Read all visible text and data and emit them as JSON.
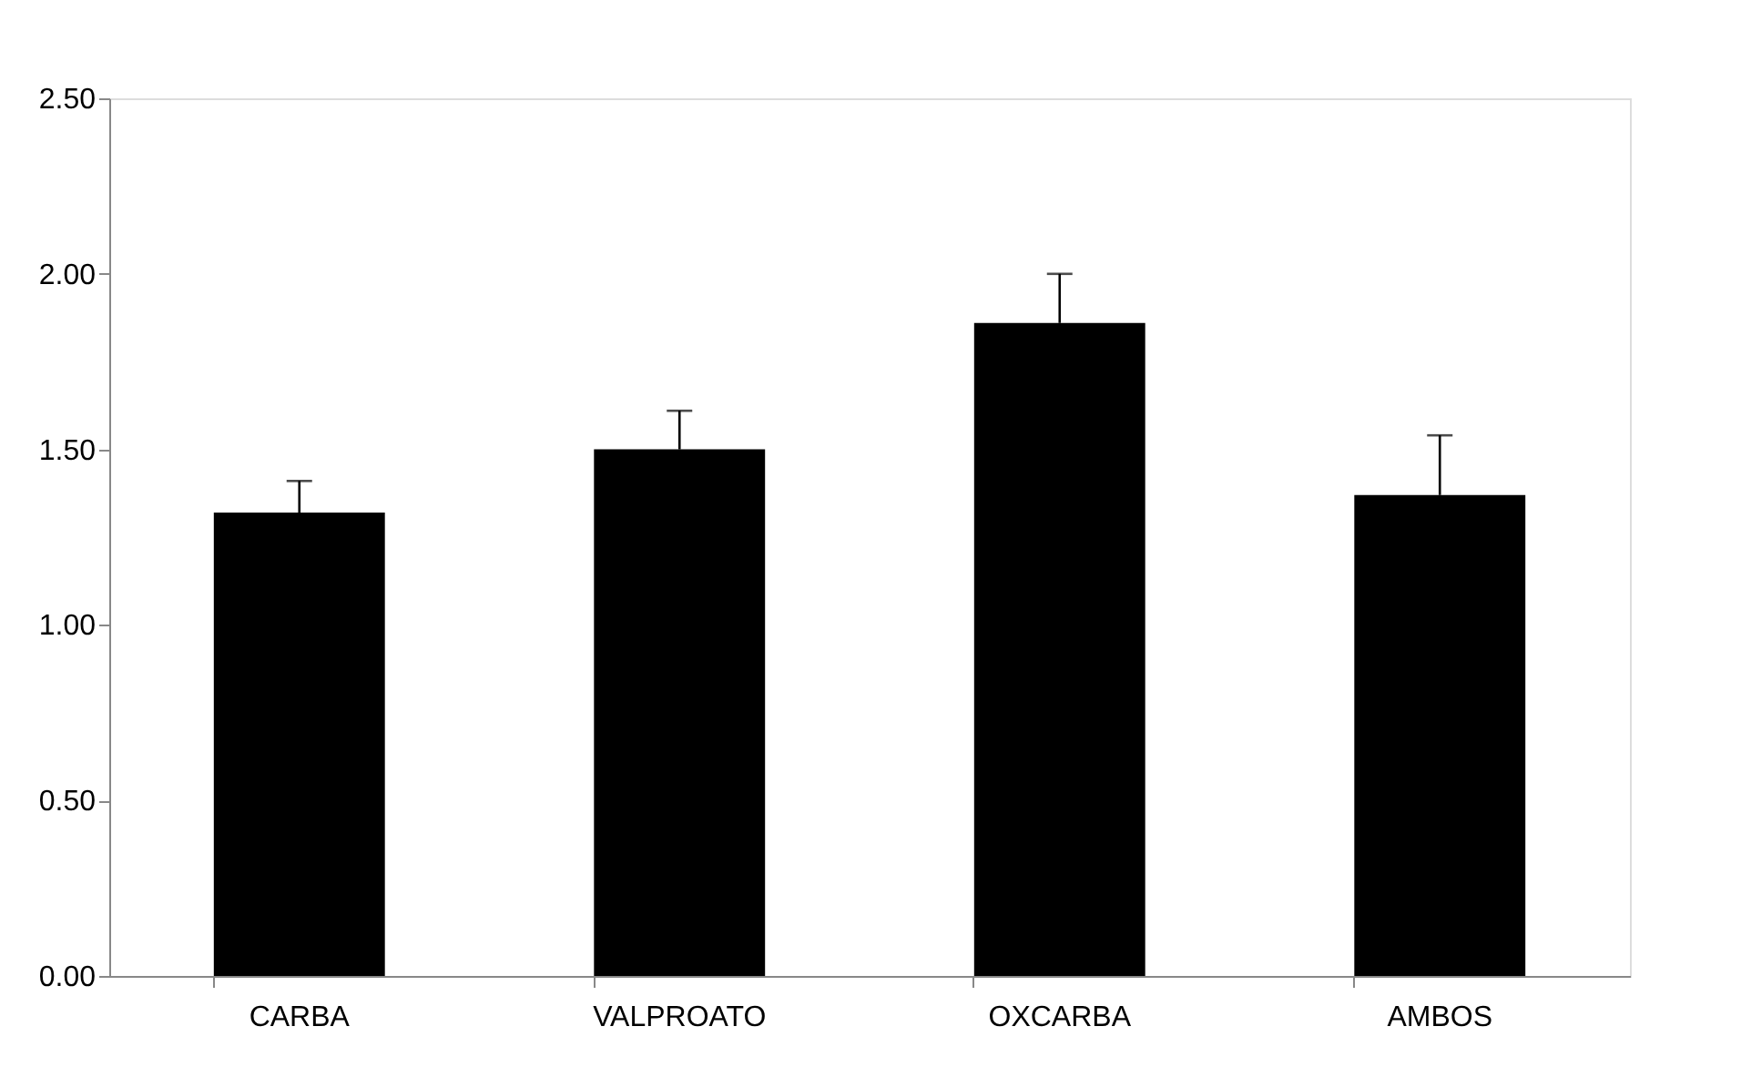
{
  "chart_data": {
    "type": "bar",
    "categories": [
      "CARBA",
      "VALPROATO",
      "OXCARBA",
      "AMBOS"
    ],
    "values": [
      1.32,
      1.5,
      1.86,
      1.37
    ],
    "errors": [
      [
        1.32,
        1.41
      ],
      [
        1.5,
        1.61
      ],
      [
        1.86,
        2.0
      ],
      [
        1.37,
        1.54
      ]
    ],
    "color": "#000000",
    "ylim": [
      0,
      2.5
    ],
    "yticks": [
      {
        "value": 0,
        "label": "0.00"
      },
      {
        "value": 0.5,
        "label": "0.50"
      },
      {
        "value": 1,
        "label": "1.00"
      },
      {
        "value": 1.5,
        "label": "1.50"
      },
      {
        "value": 2,
        "label": "2.00"
      },
      {
        "value": 2.5,
        "label": "2.50"
      }
    ],
    "grid": false
  }
}
